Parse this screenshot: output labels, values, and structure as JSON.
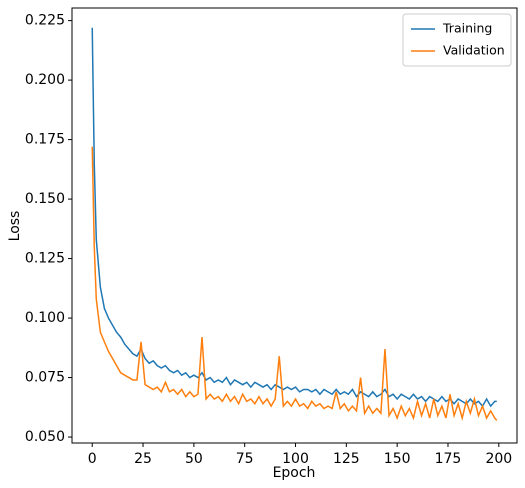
{
  "chart_data": {
    "type": "line",
    "xlabel": "Epoch",
    "ylabel": "Loss",
    "x": [
      0,
      1,
      2,
      4,
      6,
      8,
      10,
      12,
      14,
      16,
      18,
      20,
      22,
      24,
      26,
      28,
      30,
      32,
      34,
      36,
      38,
      40,
      42,
      44,
      46,
      48,
      50,
      52,
      54,
      56,
      58,
      60,
      62,
      64,
      66,
      68,
      70,
      72,
      74,
      76,
      78,
      80,
      82,
      84,
      86,
      88,
      90,
      92,
      94,
      96,
      98,
      100,
      102,
      104,
      106,
      108,
      110,
      112,
      114,
      116,
      118,
      120,
      122,
      124,
      126,
      128,
      130,
      132,
      134,
      136,
      138,
      140,
      142,
      144,
      146,
      148,
      150,
      152,
      154,
      156,
      158,
      160,
      162,
      164,
      166,
      168,
      170,
      172,
      174,
      176,
      178,
      180,
      182,
      184,
      186,
      188,
      190,
      192,
      194,
      196,
      198,
      199
    ],
    "series": [
      {
        "name": "Training",
        "color": "#1f77b4",
        "values": [
          0.222,
          0.165,
          0.133,
          0.113,
          0.104,
          0.1,
          0.097,
          0.094,
          0.092,
          0.089,
          0.087,
          0.085,
          0.084,
          0.087,
          0.083,
          0.081,
          0.082,
          0.08,
          0.079,
          0.08,
          0.078,
          0.077,
          0.078,
          0.076,
          0.077,
          0.075,
          0.076,
          0.075,
          0.077,
          0.074,
          0.075,
          0.073,
          0.074,
          0.073,
          0.075,
          0.072,
          0.074,
          0.073,
          0.072,
          0.073,
          0.071,
          0.073,
          0.072,
          0.071,
          0.072,
          0.07,
          0.072,
          0.071,
          0.07,
          0.071,
          0.07,
          0.071,
          0.069,
          0.07,
          0.07,
          0.069,
          0.07,
          0.068,
          0.07,
          0.069,
          0.068,
          0.07,
          0.068,
          0.069,
          0.068,
          0.07,
          0.067,
          0.069,
          0.068,
          0.067,
          0.069,
          0.067,
          0.068,
          0.07,
          0.067,
          0.068,
          0.066,
          0.068,
          0.067,
          0.066,
          0.068,
          0.066,
          0.067,
          0.065,
          0.067,
          0.066,
          0.065,
          0.067,
          0.065,
          0.066,
          0.064,
          0.066,
          0.065,
          0.064,
          0.066,
          0.064,
          0.065,
          0.063,
          0.066,
          0.063,
          0.065,
          0.065
        ]
      },
      {
        "name": "Validation",
        "color": "#ff7f0e",
        "values": [
          0.172,
          0.13,
          0.108,
          0.094,
          0.09,
          0.086,
          0.083,
          0.08,
          0.077,
          0.076,
          0.075,
          0.074,
          0.074,
          0.09,
          0.072,
          0.071,
          0.07,
          0.071,
          0.069,
          0.073,
          0.069,
          0.07,
          0.068,
          0.07,
          0.067,
          0.069,
          0.067,
          0.068,
          0.092,
          0.066,
          0.068,
          0.066,
          0.067,
          0.065,
          0.068,
          0.065,
          0.067,
          0.064,
          0.068,
          0.065,
          0.066,
          0.064,
          0.067,
          0.064,
          0.066,
          0.063,
          0.066,
          0.084,
          0.063,
          0.065,
          0.063,
          0.066,
          0.063,
          0.064,
          0.062,
          0.065,
          0.063,
          0.064,
          0.062,
          0.063,
          0.062,
          0.069,
          0.062,
          0.064,
          0.061,
          0.063,
          0.061,
          0.075,
          0.06,
          0.063,
          0.06,
          0.062,
          0.06,
          0.087,
          0.059,
          0.062,
          0.058,
          0.063,
          0.059,
          0.062,
          0.058,
          0.065,
          0.059,
          0.064,
          0.058,
          0.066,
          0.059,
          0.063,
          0.058,
          0.068,
          0.059,
          0.064,
          0.058,
          0.065,
          0.06,
          0.066,
          0.059,
          0.063,
          0.058,
          0.061,
          0.058,
          0.057
        ]
      }
    ],
    "xlim": [
      -9.95,
      208.95
    ],
    "ylim": [
      0.0475,
      0.2303
    ],
    "xticks": [
      0,
      25,
      50,
      75,
      100,
      125,
      150,
      175,
      200
    ],
    "yticks": [
      {
        "value": 0.05,
        "label": "0.050"
      },
      {
        "value": 0.075,
        "label": "0.075"
      },
      {
        "value": 0.1,
        "label": "0.100"
      },
      {
        "value": 0.125,
        "label": "0.125"
      },
      {
        "value": 0.15,
        "label": "0.150"
      },
      {
        "value": 0.175,
        "label": "0.175"
      },
      {
        "value": 0.2,
        "label": "0.200"
      },
      {
        "value": 0.225,
        "label": "0.225"
      }
    ],
    "legend": "upper right"
  }
}
